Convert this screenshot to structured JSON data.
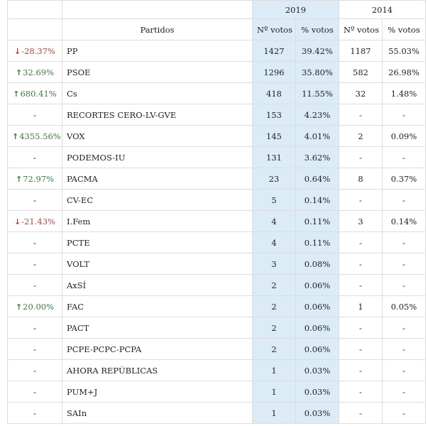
{
  "years": {
    "current": "2019",
    "previous": "2014"
  },
  "headers": {
    "party": "Partidos",
    "votes": "Nº votos",
    "pct": "% votos"
  },
  "icons": {
    "up": "arrow-up-icon",
    "down": "arrow-down-icon"
  },
  "colors": {
    "up": "#3e7a3e",
    "down": "#b0453e",
    "highlight": "#dcecf7"
  },
  "rows": [
    {
      "change": "-28.37%",
      "dir": "down",
      "party": "PP",
      "v19": "1427",
      "p19": "39.42%",
      "v14": "1187",
      "p14": "55.03%"
    },
    {
      "change": "32.69%",
      "dir": "up",
      "party": "PSOE",
      "v19": "1296",
      "p19": "35.80%",
      "v14": "582",
      "p14": "26.98%"
    },
    {
      "change": "680.41%",
      "dir": "up",
      "party": "Cs",
      "v19": "418",
      "p19": "11.55%",
      "v14": "32",
      "p14": "1.48%"
    },
    {
      "change": "-",
      "dir": "",
      "party": "RECORTES CERO-LV-GVE",
      "v19": "153",
      "p19": "4.23%",
      "v14": "-",
      "p14": "-"
    },
    {
      "change": "4355.56%",
      "dir": "up",
      "party": "VOX",
      "v19": "145",
      "p19": "4.01%",
      "v14": "2",
      "p14": "0.09%"
    },
    {
      "change": "-",
      "dir": "",
      "party": "PODEMOS-IU",
      "v19": "131",
      "p19": "3.62%",
      "v14": "-",
      "p14": "-"
    },
    {
      "change": "72.97%",
      "dir": "up",
      "party": "PACMA",
      "v19": "23",
      "p19": "0.64%",
      "v14": "8",
      "p14": "0.37%"
    },
    {
      "change": "-",
      "dir": "",
      "party": "CV-EC",
      "v19": "5",
      "p19": "0.14%",
      "v14": "-",
      "p14": "-"
    },
    {
      "change": "-21.43%",
      "dir": "down",
      "party": "I.Fem",
      "v19": "4",
      "p19": "0.11%",
      "v14": "3",
      "p14": "0.14%"
    },
    {
      "change": "-",
      "dir": "",
      "party": "PCTE",
      "v19": "4",
      "p19": "0.11%",
      "v14": "-",
      "p14": "-"
    },
    {
      "change": "-",
      "dir": "",
      "party": "VOLT",
      "v19": "3",
      "p19": "0.08%",
      "v14": "-",
      "p14": "-"
    },
    {
      "change": "-",
      "dir": "",
      "party": "AxSÍ",
      "v19": "2",
      "p19": "0.06%",
      "v14": "-",
      "p14": "-"
    },
    {
      "change": "20.00%",
      "dir": "up",
      "party": "FAC",
      "v19": "2",
      "p19": "0.06%",
      "v14": "1",
      "p14": "0.05%"
    },
    {
      "change": "-",
      "dir": "",
      "party": "PACT",
      "v19": "2",
      "p19": "0.06%",
      "v14": "-",
      "p14": "-"
    },
    {
      "change": "-",
      "dir": "",
      "party": "PCPE-PCPC-PCPA",
      "v19": "2",
      "p19": "0.06%",
      "v14": "-",
      "p14": "-"
    },
    {
      "change": "-",
      "dir": "",
      "party": "AHORA REPÚBLICAS",
      "v19": "1",
      "p19": "0.03%",
      "v14": "-",
      "p14": "-"
    },
    {
      "change": "-",
      "dir": "",
      "party": "PUM+J",
      "v19": "1",
      "p19": "0.03%",
      "v14": "-",
      "p14": "-"
    },
    {
      "change": "-",
      "dir": "",
      "party": "SAIn",
      "v19": "1",
      "p19": "0.03%",
      "v14": "-",
      "p14": "-"
    }
  ]
}
